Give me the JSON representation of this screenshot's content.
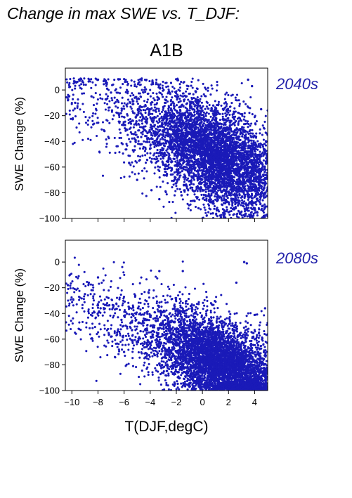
{
  "figure": {
    "title": "Change in max SWE vs. T_DJF:",
    "scenario": "A1B"
  },
  "chart_data": [
    {
      "type": "scatter",
      "panel": "2040s",
      "ylabel": "SWE Change (%)",
      "xlim": [
        -10.5,
        5
      ],
      "ylim": [
        -100,
        17
      ],
      "xticks": [
        -10,
        -8,
        -6,
        -4,
        -2,
        0,
        2,
        4
      ],
      "yticks": [
        0,
        -20,
        -40,
        -60,
        -80,
        -100
      ],
      "color": "#1a1ab8",
      "show_x_tick_labels": false,
      "cloud": {
        "n": 5200,
        "seed": 2040,
        "tmin": -10.5,
        "tmax": 5,
        "intercept": -46,
        "slope": 4.6,
        "spread": 20,
        "density_center": 1,
        "density_spread": 2.8
      },
      "highlight_points": [
        {
          "x": -10.3,
          "y": -8
        },
        {
          "x": -8.0,
          "y": 8
        },
        {
          "x": -7.3,
          "y": 1
        },
        {
          "x": -7.0,
          "y": -2
        },
        {
          "x": -8.5,
          "y": -5
        },
        {
          "x": -6.5,
          "y": -18
        },
        {
          "x": -7.5,
          "y": -32
        },
        {
          "x": -5.6,
          "y": -57
        },
        {
          "x": -5.0,
          "y": -70
        },
        {
          "x": -3.9,
          "y": -78
        },
        {
          "x": -3.3,
          "y": -85
        },
        {
          "x": -1.6,
          "y": -82
        },
        {
          "x": -0.3,
          "y": -92
        },
        {
          "x": 0.0,
          "y": -100
        },
        {
          "x": 0.8,
          "y": -96
        },
        {
          "x": 3.8,
          "y": 3
        },
        {
          "x": 3.5,
          "y": 8
        },
        {
          "x": 4.5,
          "y": -15
        }
      ]
    },
    {
      "type": "scatter",
      "panel": "2080s",
      "ylabel": "SWE Change (%)",
      "xlabel": "T(DJF,degC)",
      "xlim": [
        -10.5,
        5
      ],
      "ylim": [
        -100,
        17
      ],
      "xticks": [
        -10,
        -8,
        -6,
        -4,
        -2,
        0,
        2,
        4
      ],
      "yticks": [
        0,
        -20,
        -40,
        -60,
        -80,
        -100
      ],
      "color": "#1a1ab8",
      "show_x_tick_labels": true,
      "cloud": {
        "n": 5200,
        "seed": 2080,
        "tmin": -10.5,
        "tmax": 5,
        "intercept": -73,
        "slope": 4.3,
        "spread": 17,
        "density_center": 1.5,
        "density_spread": 2.6
      },
      "highlight_points": [
        {
          "x": -10.3,
          "y": -18
        },
        {
          "x": -9.0,
          "y": -25
        },
        {
          "x": -8.7,
          "y": -16
        },
        {
          "x": -8.0,
          "y": -12
        },
        {
          "x": -7.8,
          "y": -36
        },
        {
          "x": -7.2,
          "y": -28
        },
        {
          "x": -6.2,
          "y": -45
        },
        {
          "x": -7.0,
          "y": -58
        },
        {
          "x": -6.0,
          "y": -70
        },
        {
          "x": 3.2,
          "y": 0
        },
        {
          "x": 3.4,
          "y": -1
        },
        {
          "x": 2.6,
          "y": -16
        },
        {
          "x": 4.8,
          "y": -36
        },
        {
          "x": -3.3,
          "y": -7
        },
        {
          "x": -1.5,
          "y": -7
        }
      ]
    }
  ]
}
